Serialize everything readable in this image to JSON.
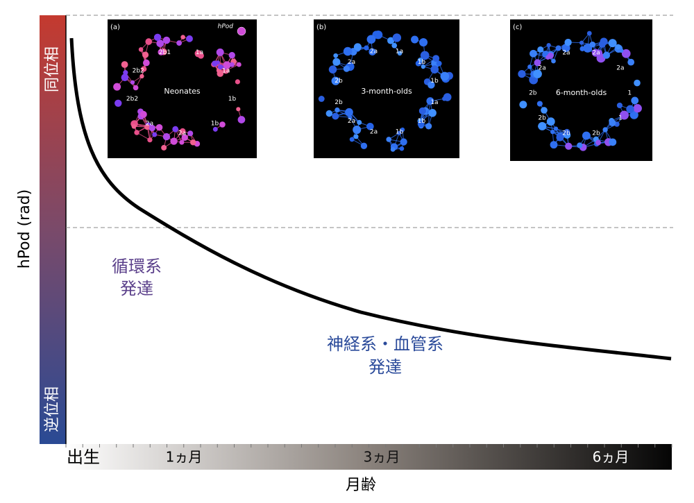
{
  "axis": {
    "y_label": "hPod (rad)",
    "y_top": "同位相",
    "y_bottom": "逆位相",
    "x_label": "月齢",
    "x_ticks": [
      "出生",
      "1ヵ月",
      "3ヵ月",
      "6ヵ月"
    ]
  },
  "annotations": [
    {
      "lines": [
        "循環系",
        "発達"
      ]
    },
    {
      "lines": [
        "神経系・血管系",
        "発達"
      ]
    }
  ],
  "insets": [
    {
      "panel": "(a)",
      "title": "Neonates",
      "labels": [
        "1a",
        "1a",
        "1b",
        "1b",
        "2a",
        "2a",
        "2b2",
        "2b2",
        "2b1"
      ],
      "legend": "hPod"
    },
    {
      "panel": "(b)",
      "title": "3-month-olds",
      "labels": [
        "1a",
        "1b",
        "1b",
        "1a",
        "1b",
        "1b",
        "2a",
        "2a",
        "2b",
        "2b",
        "2a",
        "2a"
      ]
    },
    {
      "panel": "(c)",
      "title": "6-month-olds",
      "labels": [
        "2a",
        "2a",
        "1",
        "1",
        "2b",
        "2b",
        "2b",
        "2b",
        "2a",
        "2a"
      ]
    }
  ]
}
